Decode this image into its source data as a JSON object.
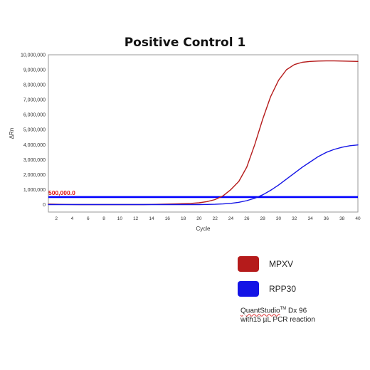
{
  "chart_data": {
    "type": "line",
    "title": "Positive Control 1",
    "xlabel": "Cycle",
    "ylabel": "ΔRn",
    "xlim": [
      1,
      40
    ],
    "ylim": [
      -500000,
      10000000
    ],
    "xticks": [
      2,
      4,
      6,
      8,
      10,
      12,
      14,
      16,
      18,
      20,
      22,
      24,
      26,
      28,
      30,
      32,
      34,
      36,
      38,
      40
    ],
    "yticks": [
      0,
      1000000,
      2000000,
      3000000,
      4000000,
      5000000,
      6000000,
      7000000,
      8000000,
      9000000,
      10000000
    ],
    "ytick_labels": [
      "0",
      "1,000,000",
      "2,000,000",
      "3,000,000",
      "4,000,000",
      "5,000,000",
      "6,000,000",
      "7,000,000",
      "8,000,000",
      "9,000,000",
      "10,000,000"
    ],
    "grid": true,
    "threshold": {
      "value": 500000,
      "label": "500,000.0",
      "color": "#0000ff"
    },
    "series": [
      {
        "name": "MPXV",
        "color": "#b51b1b",
        "x": [
          1,
          2,
          3,
          4,
          5,
          6,
          7,
          8,
          9,
          10,
          11,
          12,
          13,
          14,
          15,
          16,
          17,
          18,
          19,
          20,
          21,
          22,
          23,
          24,
          25,
          26,
          27,
          28,
          29,
          30,
          31,
          32,
          33,
          34,
          35,
          36,
          37,
          38,
          39,
          40
        ],
        "y": [
          30000,
          20000,
          10000,
          5000,
          0,
          0,
          0,
          0,
          0,
          0,
          0,
          0,
          0,
          10000,
          20000,
          30000,
          40000,
          60000,
          80000,
          120000,
          200000,
          330000,
          580000,
          1000000,
          1550000,
          2500000,
          4000000,
          5700000,
          7200000,
          8300000,
          9000000,
          9350000,
          9500000,
          9560000,
          9580000,
          9590000,
          9590000,
          9580000,
          9570000,
          9560000
        ]
      },
      {
        "name": "RPP30",
        "color": "#1414e6",
        "x": [
          1,
          2,
          3,
          4,
          5,
          6,
          7,
          8,
          9,
          10,
          11,
          12,
          13,
          14,
          15,
          16,
          17,
          18,
          19,
          20,
          21,
          22,
          23,
          24,
          25,
          26,
          27,
          28,
          29,
          30,
          31,
          32,
          33,
          34,
          35,
          36,
          37,
          38,
          39,
          40
        ],
        "y": [
          0,
          0,
          0,
          0,
          0,
          0,
          0,
          0,
          0,
          0,
          0,
          0,
          0,
          0,
          0,
          0,
          0,
          0,
          0,
          0,
          10000,
          20000,
          40000,
          80000,
          150000,
          260000,
          420000,
          650000,
          950000,
          1300000,
          1700000,
          2100000,
          2500000,
          2850000,
          3200000,
          3480000,
          3680000,
          3830000,
          3930000,
          3980000
        ]
      }
    ]
  },
  "legend": [
    {
      "label": "MPXV",
      "color": "#b51b1b"
    },
    {
      "label": "RPP30",
      "color": "#1414e6"
    }
  ],
  "footnote": {
    "brand": "QuantStudio",
    "tm": "TM",
    "model": " Dx 96",
    "line2": "with15 µL PCR reaction"
  }
}
